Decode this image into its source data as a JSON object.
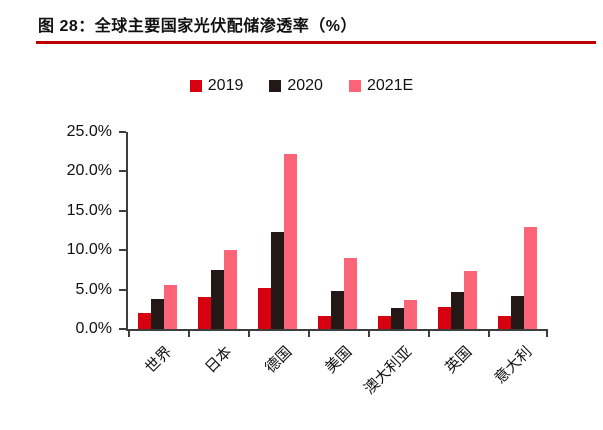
{
  "figure": {
    "title": "图 28：全球主要国家光伏配储渗透率（%）",
    "accent_rule_color": "#be0000"
  },
  "chart_data": {
    "type": "bar",
    "title": "全球主要国家光伏配储渗透率（%）",
    "categories": [
      "世界",
      "日本",
      "德国",
      "美国",
      "澳大利亚",
      "英国",
      "意大利"
    ],
    "series": [
      {
        "name": "2019",
        "color": "#d7000f",
        "values": [
          2.0,
          4.0,
          5.2,
          1.6,
          1.6,
          2.8,
          1.7
        ]
      },
      {
        "name": "2020",
        "color": "#231815",
        "values": [
          3.8,
          7.5,
          12.3,
          4.8,
          2.7,
          4.7,
          4.2
        ]
      },
      {
        "name": "2021E",
        "color": "#fc6478",
        "values": [
          5.6,
          10.0,
          22.2,
          9.0,
          3.7,
          7.4,
          13.0
        ]
      }
    ],
    "xlabel": "",
    "ylabel": "",
    "ylim": [
      0,
      25
    ],
    "ytick_step": 5,
    "ytick_labels": [
      "0.0%",
      "5.0%",
      "10.0%",
      "15.0%",
      "20.0%",
      "25.0%"
    ],
    "grid": false,
    "legend_position": "top",
    "axis_color": "#3d3d3d"
  }
}
